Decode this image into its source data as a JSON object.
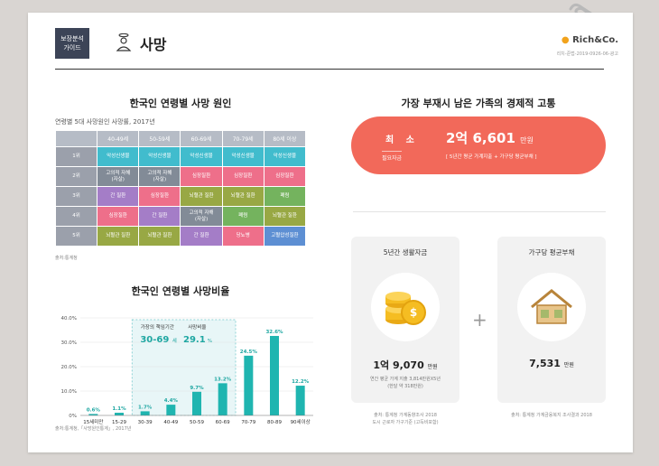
{
  "header": {
    "badge": "보장분석\n가이드",
    "title": "사망",
    "logo": "Rich&Co.",
    "code": "리치-준법-2019-0926-06-광고"
  },
  "causes": {
    "title": "한국인 연령별 사망 원인",
    "subtitle": "연령별 5대 사망원인 사망률, 2017년",
    "columns": [
      "40-49세",
      "50-59세",
      "60-69세",
      "70-79세",
      "80세 이상"
    ],
    "rows": [
      {
        "rank": "1위",
        "cells": [
          {
            "t": "악성신생물",
            "c": "c-cyan"
          },
          {
            "t": "악성신생물",
            "c": "c-cyan"
          },
          {
            "t": "악성신생물",
            "c": "c-cyan"
          },
          {
            "t": "악성신생물",
            "c": "c-cyan"
          },
          {
            "t": "악성신생물",
            "c": "c-cyan"
          }
        ]
      },
      {
        "rank": "2위",
        "cells": [
          {
            "t": "고의적 자해\n(자살)",
            "c": "c-gray"
          },
          {
            "t": "고의적 자해\n(자살)",
            "c": "c-gray"
          },
          {
            "t": "심장질환",
            "c": "c-pink"
          },
          {
            "t": "심장질환",
            "c": "c-pink"
          },
          {
            "t": "심장질환",
            "c": "c-pink"
          }
        ]
      },
      {
        "rank": "3위",
        "cells": [
          {
            "t": "간 질환",
            "c": "c-purple"
          },
          {
            "t": "심장질환",
            "c": "c-pink"
          },
          {
            "t": "뇌혈관 질환",
            "c": "c-olive"
          },
          {
            "t": "뇌혈관 질환",
            "c": "c-olive"
          },
          {
            "t": "폐렴",
            "c": "c-green"
          }
        ]
      },
      {
        "rank": "4위",
        "cells": [
          {
            "t": "심장질환",
            "c": "c-pink"
          },
          {
            "t": "간 질환",
            "c": "c-purple"
          },
          {
            "t": "고의적 자해\n(자살)",
            "c": "c-gray"
          },
          {
            "t": "폐렴",
            "c": "c-green"
          },
          {
            "t": "뇌혈관 질환",
            "c": "c-olive"
          }
        ]
      },
      {
        "rank": "5위",
        "cells": [
          {
            "t": "뇌혈관 질환",
            "c": "c-olive"
          },
          {
            "t": "뇌혈관 질환",
            "c": "c-olive"
          },
          {
            "t": "간 질환",
            "c": "c-purple"
          },
          {
            "t": "당뇨병",
            "c": "c-pink"
          },
          {
            "t": "고혈압성질환",
            "c": "c-blue"
          }
        ]
      }
    ],
    "source": "출처:통계청"
  },
  "chart_data": {
    "type": "bar",
    "title": "한국인 연령별 사망비율",
    "categories": [
      "15세미만",
      "15-29",
      "30-39",
      "40-49",
      "50-59",
      "60-69",
      "70-79",
      "80-89",
      "90세이상"
    ],
    "values": [
      0.6,
      1.1,
      1.7,
      4.4,
      9.7,
      13.2,
      24.5,
      32.6,
      12.2
    ],
    "value_labels": [
      "0.6%",
      "1.1%",
      "1.7%",
      "4.4%",
      "9.7%",
      "13.2%",
      "24.5%",
      "32.6%",
      "12.2%"
    ],
    "y_ticks": [
      "0%",
      "10.0%",
      "20.0%",
      "30.0%",
      "40.0%"
    ],
    "ylim": [
      0,
      40
    ],
    "highlight": {
      "age_label": "가장의 책임기간",
      "age_value": "30-69",
      "age_unit": "세",
      "rate_label": "사망비율",
      "rate_value": "29.1",
      "rate_unit": "%"
    },
    "bar_color": "#1fb5b0",
    "source": "출처:통계청,「사망원인통계」, 2017년"
  },
  "burden": {
    "title": "가장 부재시 남은 가족의 경제적 고통",
    "min_label": "최 소",
    "need_label": "필요자금",
    "total": "2억 6,601",
    "total_unit": "만원",
    "total_sub": "[ 5년간 평균 가계지출 + 가구당 평균부채 ]",
    "living": {
      "title": "5년간 생활자금",
      "value": "1억 9,070",
      "unit": "만원",
      "desc": "연간 평균 가계 지출 3,814만원X5년\n(한달 약 318만원)",
      "source": "출처: 통계청 가계동향조사 2018\n도시 근로자 가구기준 (고득비포함)"
    },
    "debt": {
      "title": "가구당 평균부채",
      "value": "7,531",
      "unit": "만원",
      "source": "출처: 통계청 가계금융복지 조사결과 2018"
    },
    "plus": "+"
  }
}
